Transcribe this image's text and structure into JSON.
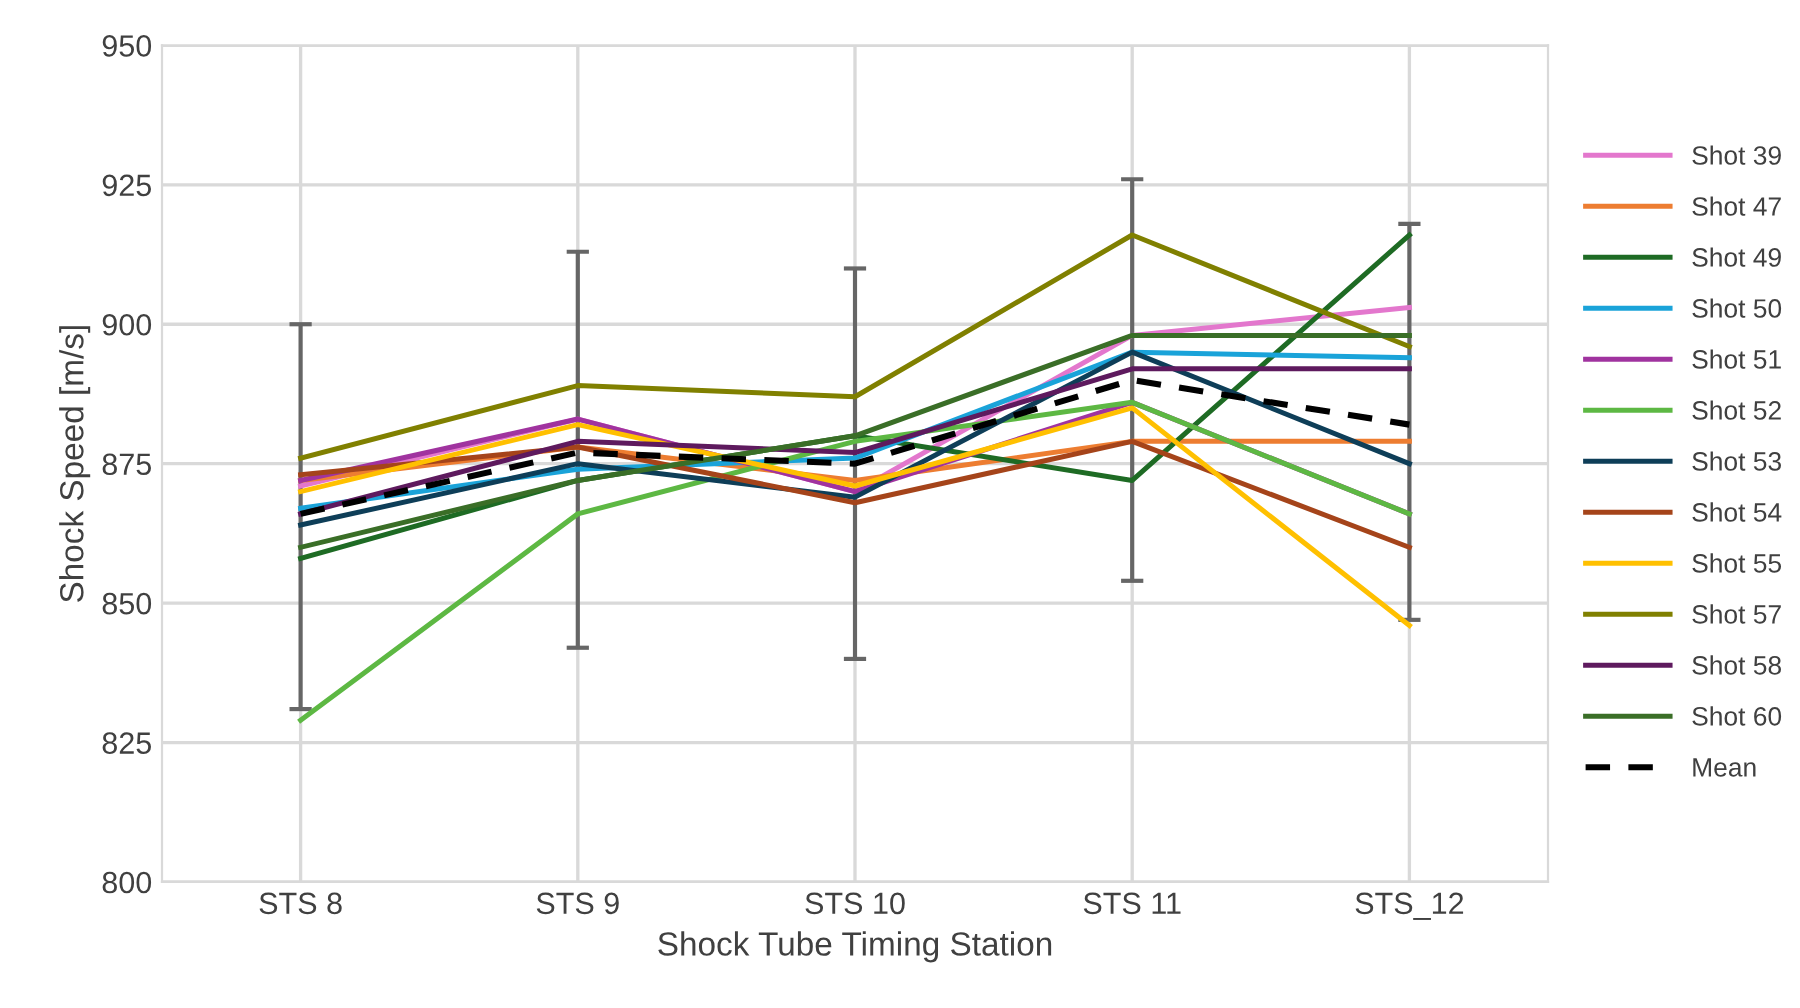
{
  "chart_data": {
    "type": "line",
    "xlabel": "Shock Tube Timing Station",
    "ylabel": "Shock Speed [m/s]",
    "categories": [
      "STS 8",
      "STS 9",
      "STS 10",
      "STS 11",
      "STS_12"
    ],
    "series": [
      {
        "name": "Shot 39",
        "color": "#e377cd",
        "values": [
          871,
          883,
          870,
          898,
          903
        ]
      },
      {
        "name": "Shot 47",
        "color": "#ed7d31",
        "values": [
          872,
          878,
          872,
          879,
          879
        ]
      },
      {
        "name": "Shot 49",
        "color": "#1e6b24",
        "values": [
          858,
          872,
          880,
          872,
          916
        ]
      },
      {
        "name": "Shot 50",
        "color": "#1aa3d9",
        "values": [
          867,
          874,
          876,
          895,
          894
        ]
      },
      {
        "name": "Shot 51",
        "color": "#a0339f",
        "values": [
          872,
          883,
          870,
          886,
          866
        ]
      },
      {
        "name": "Shot 52",
        "color": "#5db843",
        "values": [
          829,
          866,
          879,
          886,
          866
        ]
      },
      {
        "name": "Shot 53",
        "color": "#0e3e58",
        "values": [
          864,
          875,
          869,
          895,
          875
        ]
      },
      {
        "name": "Shot 54",
        "color": "#a5441a",
        "values": [
          873,
          878,
          868,
          879,
          860
        ]
      },
      {
        "name": "Shot 55",
        "color": "#ffc000",
        "values": [
          870,
          882,
          871,
          885,
          846
        ]
      },
      {
        "name": "Shot 57",
        "color": "#808000",
        "values": [
          876,
          889,
          887,
          916,
          896
        ]
      },
      {
        "name": "Shot 58",
        "color": "#5e1a5e",
        "values": [
          866,
          879,
          877,
          892,
          892
        ]
      },
      {
        "name": "Shot 60",
        "color": "#3a6e27",
        "values": [
          860,
          872,
          880,
          898,
          898
        ]
      },
      {
        "name": "Mean",
        "color": "#000000",
        "line_style": "dashed",
        "values": [
          866,
          877,
          875,
          890,
          882
        ],
        "errors": [
          [
            831,
            900
          ],
          [
            842,
            913
          ],
          [
            840,
            910
          ],
          [
            854,
            926
          ],
          [
            847,
            918
          ]
        ]
      }
    ],
    "ylim": [
      800,
      950
    ],
    "yticks": [
      800,
      825,
      850,
      875,
      900,
      925,
      950
    ],
    "grid": true,
    "legend": "right",
    "marker": "none"
  }
}
